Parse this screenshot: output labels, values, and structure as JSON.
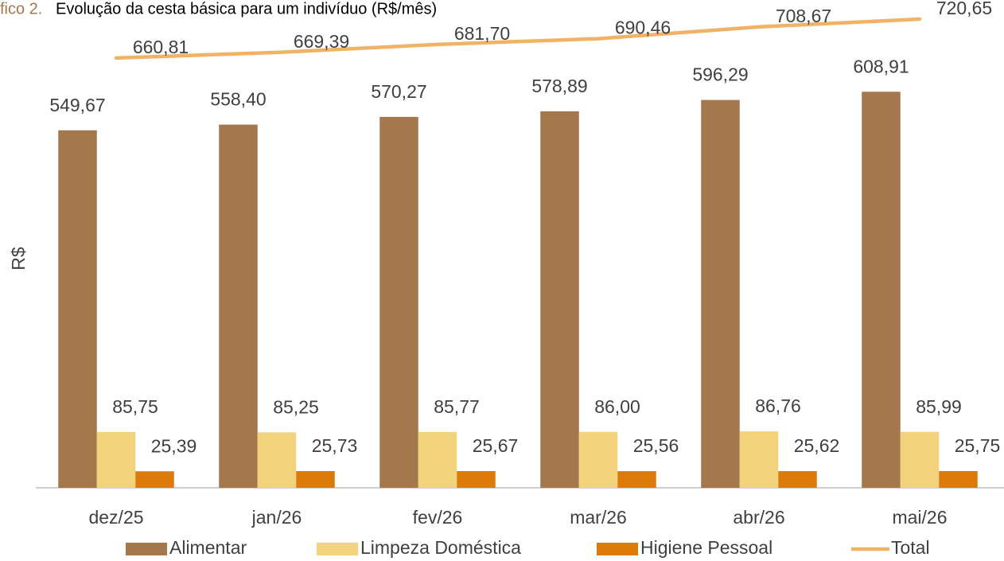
{
  "chart_data": {
    "type": "bar",
    "title_prefix": "fico 2.",
    "title": "Evolução da cesta básica para um indivíduo (R$/mês)",
    "y_label": "R$",
    "categories": [
      "dez/25",
      "jan/26",
      "fev/26",
      "mar/26",
      "abr/26",
      "mai/26"
    ],
    "ylim": [
      0,
      750
    ],
    "series": [
      {
        "name": "Alimentar",
        "type": "bar",
        "color": "#a5774c",
        "values": [
          549.67,
          558.4,
          570.27,
          578.89,
          596.29,
          608.91
        ],
        "value_labels": [
          "549,67",
          "558,40",
          "570,27",
          "578,89",
          "596,29",
          "608,91"
        ]
      },
      {
        "name": "Limpeza Doméstica",
        "type": "bar",
        "color": "#f2d27a",
        "values": [
          85.75,
          85.25,
          85.77,
          86.0,
          86.76,
          85.99
        ],
        "value_labels": [
          "85,75",
          "85,25",
          "85,77",
          "86,00",
          "86,76",
          "85,99"
        ]
      },
      {
        "name": "Higiene Pessoal",
        "type": "bar",
        "color": "#dc7a0a",
        "values": [
          25.39,
          25.73,
          25.67,
          25.56,
          25.62,
          25.75
        ],
        "value_labels": [
          "25,39",
          "25,73",
          "25,67",
          "25,56",
          "25,62",
          "25,75"
        ]
      },
      {
        "name": "Total",
        "type": "line",
        "color": "#f1b266",
        "values": [
          660.81,
          669.39,
          681.7,
          690.46,
          708.67,
          720.65
        ],
        "value_labels": [
          "660,81",
          "669,39",
          "681,70",
          "690,46",
          "708,67",
          "720,65"
        ]
      }
    ]
  }
}
